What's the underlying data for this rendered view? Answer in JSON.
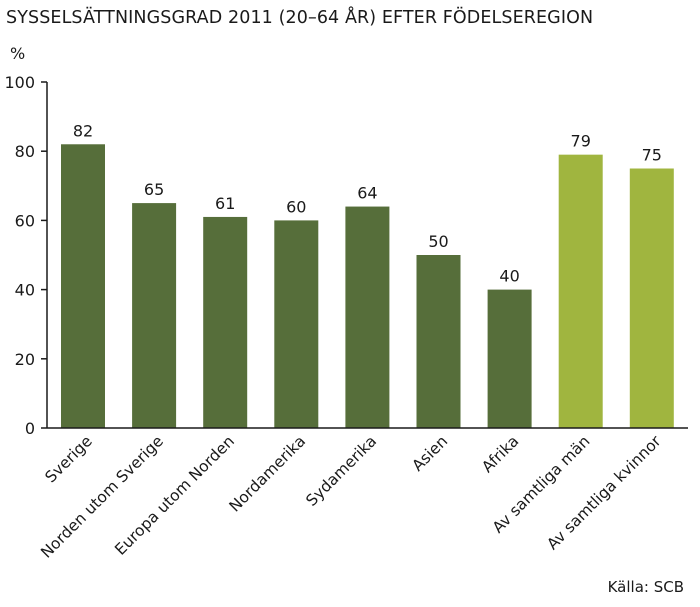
{
  "title": "SYSSELSÄTTNINGSGRAD 2011 (20–64 ÅR) EFTER FÖDELSEREGION",
  "source": "Källa: SCB",
  "chart_data": {
    "type": "bar",
    "title": "SYSSELSÄTTNINGSGRAD 2011 (20–64 ÅR) EFTER FÖDELSEREGION",
    "ylabel": "%",
    "xlabel": "",
    "ylim": [
      0,
      100
    ],
    "yticks": [
      0,
      20,
      40,
      60,
      80,
      100
    ],
    "grid": false,
    "legend": "none",
    "categories": [
      "Sverige",
      "Norden utom Sverige",
      "Europa utom Norden",
      "Nordamerika",
      "Sydamerika",
      "Asien",
      "Afrika",
      "Av samtliga män",
      "Av samtliga kvinnor"
    ],
    "values": [
      82,
      65,
      61,
      60,
      64,
      50,
      40,
      79,
      75
    ],
    "bar_colors": [
      "#566e3a",
      "#566e3a",
      "#566e3a",
      "#566e3a",
      "#566e3a",
      "#566e3a",
      "#566e3a",
      "#a0b53f",
      "#a0b53f"
    ]
  }
}
